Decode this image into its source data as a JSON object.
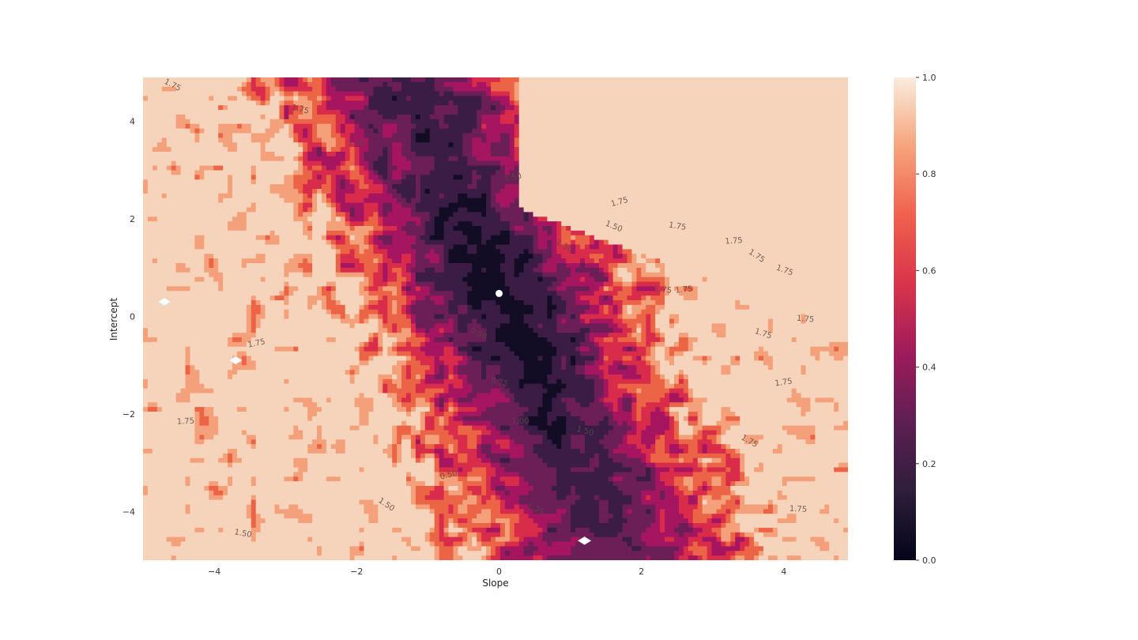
{
  "chart_data": {
    "type": "heatmap",
    "subtype": "filled-contour",
    "title": "",
    "xlabel": "Slope",
    "ylabel": "Intercept",
    "xlim": [
      -5,
      4.9
    ],
    "ylim": [
      -5,
      4.9
    ],
    "xticks": [
      -4,
      -2,
      0,
      2,
      4
    ],
    "xtick_labels": [
      "−4",
      "−2",
      "0",
      "2",
      "4"
    ],
    "yticks": [
      -4,
      -2,
      0,
      2,
      4
    ],
    "ytick_labels": [
      "−4",
      "−2",
      "0",
      "2",
      "4"
    ],
    "colormap": "rocket",
    "colormap_stops": [
      "#03051a",
      "#2e1e3b",
      "#5e1f52",
      "#9f1b5c",
      "#d9344b",
      "#f0604d",
      "#f6a47c",
      "#faebdd"
    ],
    "plotted_band_colors": [
      "#120d25",
      "#3b1c45",
      "#6b1f56",
      "#a6155f",
      "#d92c4a",
      "#ec6446",
      "#f4a17b",
      "#f6d3bb"
    ],
    "contour_levels": [
      "0.25",
      "0.50",
      "0.75",
      "1.00",
      "1.25",
      "1.50",
      "1.75"
    ],
    "contour_label_samples": [
      "1.75",
      "1.50",
      "1.75",
      "1.75",
      "1.75",
      "1.75",
      "1.75",
      "1.75",
      "1.50",
      "1.75",
      "1.75",
      "1.75",
      "1.75",
      "1.50",
      "1.75",
      "1.50",
      "1.75",
      "1.75",
      "1.50",
      "1.75",
      "0.50",
      "0.75",
      "1.00",
      "0.50",
      "1.25",
      "1.50",
      "1.75",
      "1.50"
    ],
    "colorbar": {
      "range": [
        0.0,
        1.0
      ],
      "ticks": [
        0.0,
        0.2,
        0.4,
        0.6,
        0.8,
        1.0
      ],
      "tick_labels": [
        "0.0",
        "0.2",
        "0.4",
        "0.6",
        "0.8",
        "1.0"
      ]
    },
    "minimum_point": {
      "x": 0.0,
      "y": 0.47,
      "color": "#ffffff"
    },
    "valley": {
      "direction_slope": -0.3,
      "description_only": false
    },
    "highlighted_white_markers": [
      {
        "x": -4.7,
        "y": 0.3
      },
      {
        "x": -3.7,
        "y": -0.9
      },
      {
        "x": 1.2,
        "y": -4.6
      }
    ],
    "grid": false,
    "legend": "none"
  }
}
